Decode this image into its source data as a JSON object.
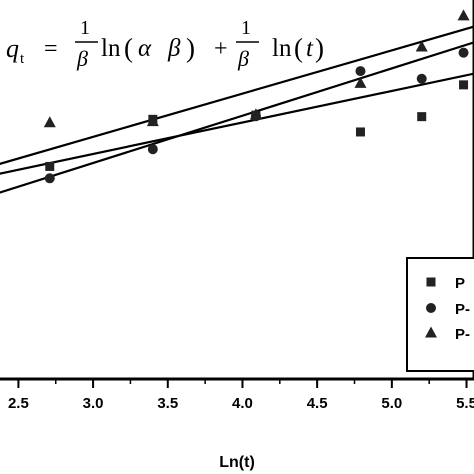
{
  "chart_data": {
    "type": "scatter",
    "xlabel": "Ln(t)",
    "ylabel": "",
    "xlim": [
      2.35,
      5.55
    ],
    "ylim": [
      0,
      1
    ],
    "x_ticks": [
      "2.5",
      "3.0",
      "3.5",
      "4.0",
      "4.5",
      "5.0",
      "5.5"
    ],
    "grid": false,
    "legend_position": "bottom-right",
    "series": [
      {
        "name": "P",
        "marker": "square",
        "x": [
          2.71,
          3.4,
          4.09,
          4.79,
          5.2,
          5.48
        ],
        "y": [
          0.555,
          0.678,
          0.689,
          0.645,
          0.685,
          0.768
        ],
        "fit": {
          "intercept": 0.341,
          "slope": 0.0822
        }
      },
      {
        "name": "P-",
        "marker": "circle",
        "x": [
          2.71,
          3.4,
          4.09,
          4.79,
          5.2,
          5.48
        ],
        "y": [
          0.524,
          0.6,
          0.686,
          0.804,
          0.784,
          0.852
        ],
        "fit": {
          "intercept": 0.1935,
          "slope": 0.1235
        }
      },
      {
        "name": "P-",
        "marker": "triangle",
        "x": [
          2.71,
          3.4,
          4.09,
          4.79,
          5.2,
          5.48
        ],
        "y": [
          0.669,
          0.672,
          0.69,
          0.772,
          0.867,
          0.948
        ],
        "fit": {
          "intercept": 0.2935,
          "slope": 0.1129
        }
      }
    ],
    "annotations": {
      "equation": {
        "lhs": "q",
        "sub": "t",
        "equals": "=",
        "one": "1",
        "beta": "β",
        "ln": "ln",
        "alpha": "α",
        "plus": "+",
        "open_paren": "(",
        "close_paren": ")",
        "t": "t"
      }
    }
  }
}
